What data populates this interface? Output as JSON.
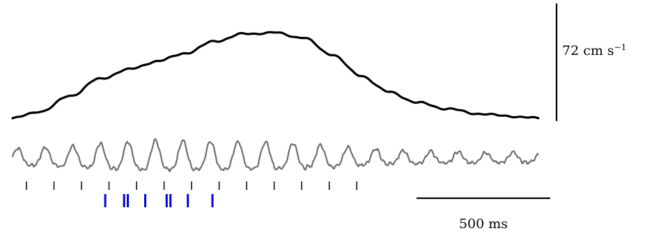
{
  "chart_data": {
    "type": "line",
    "title": "",
    "speed_scale_label": "72 cm s",
    "speed_scale_exponent": "−1",
    "speed_scale_value": 72,
    "time_scale_label": "500 ms",
    "time_scale_value": 500,
    "total_duration_ms": 1815,
    "series": [
      {
        "kind": "speed",
        "color": "#000000",
        "y_range": [
          0,
          72
        ],
        "t_ms": [
          0,
          100,
          200,
          300,
          400,
          500,
          600,
          700,
          800,
          900,
          1000,
          1100,
          1200,
          1300,
          1400,
          1500,
          1600,
          1700,
          1815
        ],
        "y": [
          0,
          6,
          19,
          33,
          41,
          48,
          55,
          65,
          71,
          72,
          68,
          54,
          36,
          22,
          13,
          8,
          4,
          2,
          0
        ]
      },
      {
        "kind": "lfp",
        "color": "#6e6e6e",
        "cycle_period_ms": 95,
        "cycle_peak_ms": [
          18,
          113,
          208,
          303,
          398,
          493,
          588,
          683,
          778,
          873,
          968,
          1063,
          1158,
          1253,
          1348,
          1443,
          1538,
          1633,
          1728
        ],
        "amplitude": [
          0.55,
          0.6,
          0.68,
          0.8,
          0.9,
          0.95,
          0.95,
          0.92,
          0.9,
          0.88,
          0.82,
          0.72,
          0.6,
          0.5,
          0.42,
          0.38,
          0.36,
          0.34,
          0.32
        ]
      }
    ],
    "cycle_ticks_ms": [
      48,
      143,
      238,
      333,
      428,
      523,
      618,
      713,
      808,
      903,
      998,
      1093,
      1188
    ],
    "spikes_ms": [
      320,
      385,
      398,
      458,
      532,
      545,
      605,
      690
    ],
    "tick_color": "#000000",
    "spike_color": "#0000dd"
  }
}
